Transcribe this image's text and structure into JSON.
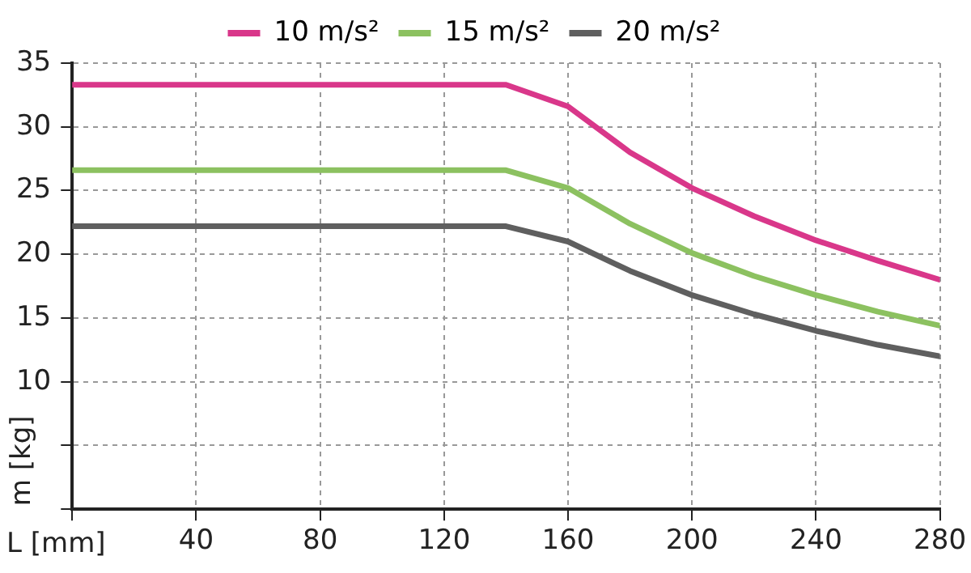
{
  "chart_data": {
    "type": "line",
    "xlabel": "L [mm]",
    "ylabel": "m [kg]",
    "x": [
      0,
      140,
      160,
      180,
      200,
      220,
      240,
      260,
      280
    ],
    "series": [
      {
        "name": "10 m/s²",
        "color": "#d9378a",
        "values": [
          33.3,
          33.3,
          31.6,
          28,
          25.2,
          23,
          21.1,
          19.5,
          18
        ]
      },
      {
        "name": "15 m/s²",
        "color": "#8cc160",
        "values": [
          26.6,
          26.6,
          25.2,
          22.4,
          20.1,
          18.3,
          16.8,
          15.5,
          14.4
        ]
      },
      {
        "name": "20 m/s²",
        "color": "#5f5f5f",
        "values": [
          22.2,
          22.2,
          21,
          18.7,
          16.8,
          15.3,
          14,
          12.9,
          12
        ]
      }
    ],
    "xlim": [
      0,
      280
    ],
    "xticks": [
      {
        "value": 0,
        "label": null
      },
      40,
      80,
      120,
      160,
      200,
      240,
      280
    ],
    "ylim": [
      0,
      35
    ],
    "yticks": [
      {
        "value": 0,
        "label": null
      },
      {
        "value": 5,
        "label": null
      },
      10,
      15,
      20,
      25,
      30,
      35
    ],
    "grid": true,
    "legend": "top",
    "marker": "none",
    "line_style": "solid"
  }
}
